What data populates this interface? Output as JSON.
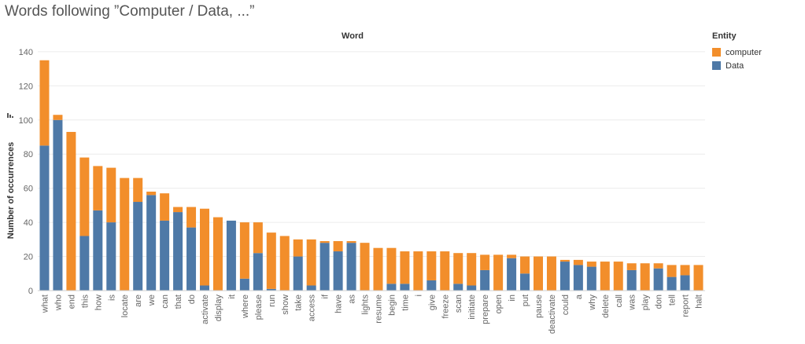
{
  "chart_data": {
    "type": "bar",
    "stacked": true,
    "title": "Words following ”Computer / Data, ...”",
    "column_header": "Word",
    "xlabel": "",
    "ylabel": "Number of occurrences",
    "ylim": [
      0,
      145
    ],
    "yticks": [
      0,
      20,
      40,
      60,
      80,
      100,
      120,
      140
    ],
    "grid": true,
    "legend_title": "Entity",
    "legend_position": "top-right",
    "categories": [
      "what",
      "who",
      "end",
      "this",
      "how",
      "is",
      "locate",
      "are",
      "we",
      "can",
      "that",
      "do",
      "activate",
      "display",
      "it",
      "where",
      "please",
      "run",
      "show",
      "take",
      "access",
      "if",
      "have",
      "as",
      "lights",
      "resume",
      "begin",
      "time",
      "i",
      "give",
      "freeze",
      "scan",
      "initiate",
      "prepare",
      "open",
      "in",
      "put",
      "pause",
      "deactivate",
      "could",
      "a",
      "why",
      "delete",
      "call",
      "was",
      "play",
      "don",
      "tell",
      "report",
      "halt"
    ],
    "series": [
      {
        "name": "Data",
        "color": "#4e79a7",
        "values": [
          85,
          100,
          0,
          32,
          47,
          40,
          0,
          52,
          56,
          41,
          46,
          37,
          3,
          0,
          41,
          7,
          22,
          1,
          0,
          20,
          3,
          28,
          23,
          28,
          0,
          0,
          4,
          4,
          0,
          6,
          0,
          4,
          3,
          12,
          0,
          19,
          10,
          0,
          0,
          17,
          15,
          14,
          0,
          0,
          12,
          0,
          13,
          8,
          9,
          0
        ]
      },
      {
        "name": "computer",
        "color": "#f28e2b",
        "values": [
          50,
          3,
          93,
          46,
          26,
          32,
          66,
          14,
          2,
          16,
          3,
          12,
          45,
          43,
          0,
          33,
          18,
          33,
          32,
          10,
          27,
          1,
          6,
          1,
          28,
          25,
          21,
          19,
          23,
          17,
          23,
          18,
          19,
          9,
          21,
          2,
          10,
          20,
          20,
          1,
          3,
          3,
          17,
          17,
          4,
          16,
          3,
          7,
          6,
          15
        ]
      }
    ]
  }
}
